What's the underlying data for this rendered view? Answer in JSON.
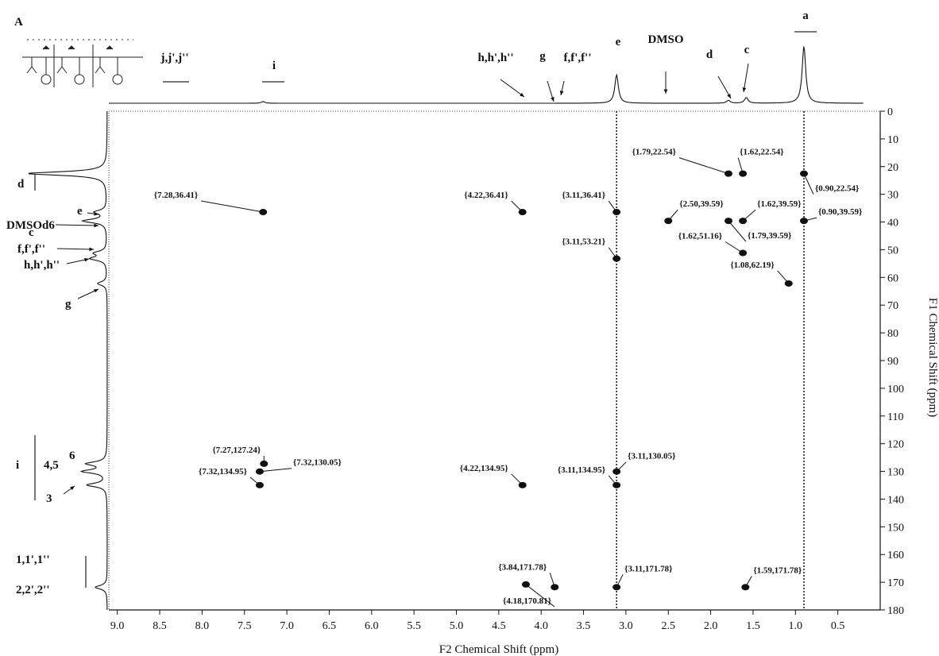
{
  "panel_label": "A",
  "chart_data": {
    "type": "scatter",
    "subtype": "2D NMR HSQC contour plot",
    "xlabel": "F2 Chemical Shift (ppm)",
    "ylabel": "F1 Chemical Shift (ppm)",
    "xlim": [
      9.1,
      0.0
    ],
    "ylim": [
      0,
      180
    ],
    "x_reversed": true,
    "y_reversed": true,
    "x_ticks": [
      "9.0",
      "8.5",
      "8.0",
      "7.5",
      "7.0",
      "6.5",
      "6.0",
      "5.5",
      "5.0",
      "4.5",
      "4.0",
      "3.5",
      "3.0",
      "2.5",
      "2.0",
      "1.5",
      "1.0",
      "0.5"
    ],
    "y_ticks": [
      "0",
      "10",
      "20",
      "30",
      "40",
      "50",
      "60",
      "70",
      "80",
      "90",
      "100",
      "110",
      "120",
      "130",
      "140",
      "150",
      "160",
      "170",
      "180"
    ],
    "vertical_lines": [
      3.11,
      0.9
    ],
    "cross_peaks": [
      {
        "x": 7.28,
        "y": 36.41,
        "label": "{7.28,36.41}"
      },
      {
        "x": 4.22,
        "y": 36.41,
        "label": "{4.22,36.41}"
      },
      {
        "x": 3.11,
        "y": 36.41,
        "label": "{3.11,36.41}"
      },
      {
        "x": 1.79,
        "y": 22.54,
        "label": "{1.79,22.54}"
      },
      {
        "x": 1.62,
        "y": 22.54,
        "label": "{1.62,22.54}"
      },
      {
        "x": 0.9,
        "y": 22.54,
        "label": "{0.90,22.54}"
      },
      {
        "x": 2.5,
        "y": 39.59,
        "label": "{2.50,39.59}"
      },
      {
        "x": 1.62,
        "y": 39.59,
        "label": "{1.62,39.59}"
      },
      {
        "x": 0.9,
        "y": 39.59,
        "label": "{0.90,39.59}"
      },
      {
        "x": 1.62,
        "y": 51.16,
        "label": "{1.62,51.16}"
      },
      {
        "x": 1.79,
        "y": 39.59,
        "label": "{1.79,39.59}"
      },
      {
        "x": 3.11,
        "y": 53.21,
        "label": "{3.11,53.21}"
      },
      {
        "x": 1.08,
        "y": 62.19,
        "label": "{1.08,62.19}"
      },
      {
        "x": 7.27,
        "y": 127.24,
        "label": "{7.27,127.24}"
      },
      {
        "x": 7.32,
        "y": 130.05,
        "label": "{7.32,130.05}"
      },
      {
        "x": 7.32,
        "y": 134.95,
        "label": "{7.32,134.95}"
      },
      {
        "x": 4.22,
        "y": 134.95,
        "label": "{4.22,134.95}"
      },
      {
        "x": 3.11,
        "y": 134.95,
        "label": "{3.11,134.95}"
      },
      {
        "x": 3.11,
        "y": 130.05,
        "label": "{3.11,130.05}"
      },
      {
        "x": 3.84,
        "y": 171.78,
        "label": "{3.84,171.78}"
      },
      {
        "x": 4.18,
        "y": 170.81,
        "label": "{4.18,170.81}"
      },
      {
        "x": 3.11,
        "y": 171.78,
        "label": "{3.11,171.78}"
      },
      {
        "x": 1.59,
        "y": 171.78,
        "label": "{1.59,171.78}"
      }
    ],
    "f2_projection_peaks": [
      {
        "ppm": 7.28,
        "height": 0.03
      },
      {
        "ppm": 3.11,
        "height": 0.5
      },
      {
        "ppm": 1.79,
        "height": 0.05
      },
      {
        "ppm": 1.58,
        "height": 0.1
      },
      {
        "ppm": 0.9,
        "height": 1.0
      }
    ],
    "f2_projection_labels": [
      {
        "text": "a"
      },
      {
        "text": "e"
      },
      {
        "text": "DMSO"
      },
      {
        "text": "d"
      },
      {
        "text": "c"
      },
      {
        "text": "g"
      },
      {
        "text": "f,f',f''"
      },
      {
        "text": "h,h',h''"
      },
      {
        "text": "i"
      },
      {
        "text": "j,j',j''"
      }
    ],
    "f1_projection_peaks": [
      {
        "ppm": 22.5,
        "height": 1.0
      },
      {
        "ppm": 36.4,
        "height": 0.15
      },
      {
        "ppm": 39.6,
        "height": 0.3
      },
      {
        "ppm": 51.2,
        "height": 0.15
      },
      {
        "ppm": 53.2,
        "height": 0.2
      },
      {
        "ppm": 62.2,
        "height": 0.12
      },
      {
        "ppm": 127.2,
        "height": 0.25
      },
      {
        "ppm": 130.0,
        "height": 0.3
      },
      {
        "ppm": 134.9,
        "height": 0.25
      },
      {
        "ppm": 171.8,
        "height": 0.15
      }
    ],
    "f1_projection_labels": [
      {
        "text": "d"
      },
      {
        "text": "e"
      },
      {
        "text": "DMSOd6"
      },
      {
        "text": "c"
      },
      {
        "text": "f,f',f''"
      },
      {
        "text": "h,h',h''"
      },
      {
        "text": "g"
      },
      {
        "text": "i"
      },
      {
        "text": "4,5"
      },
      {
        "text": "6"
      },
      {
        "text": "3"
      },
      {
        "text": "1,1',1''"
      },
      {
        "text": "2,2',2''"
      }
    ]
  }
}
